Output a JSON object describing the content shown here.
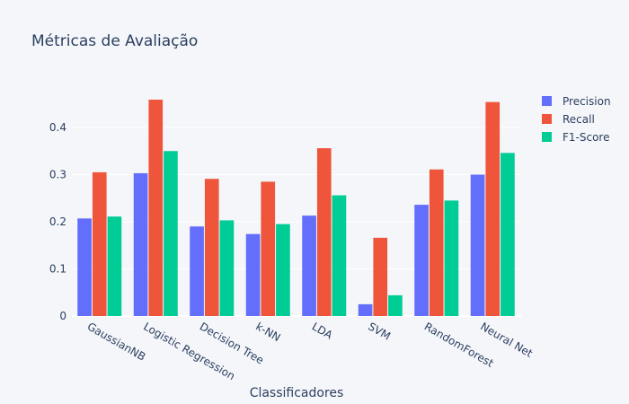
{
  "chart_data": {
    "type": "bar",
    "title": "Métricas de Avaliação",
    "xlabel": "Classificadores",
    "ylabel": "",
    "ylim": [
      0,
      0.48
    ],
    "yticks": [
      0,
      0.1,
      0.2,
      0.3,
      0.4
    ],
    "grid": true,
    "legend_position": "top-right",
    "categories": [
      "GaussianNB",
      "Logistic Regression",
      "Decision Tree",
      "k-NN",
      "LDA",
      "SVM",
      "RandomForest",
      "Neural Net"
    ],
    "series": [
      {
        "name": "Precision",
        "color": "#636efa",
        "values": [
          0.207,
          0.303,
          0.19,
          0.174,
          0.213,
          0.025,
          0.236,
          0.3
        ]
      },
      {
        "name": "Recall",
        "color": "#ef553b",
        "values": [
          0.305,
          0.459,
          0.291,
          0.285,
          0.356,
          0.166,
          0.311,
          0.454
        ]
      },
      {
        "name": "F1-Score",
        "color": "#00cc96",
        "values": [
          0.211,
          0.35,
          0.203,
          0.195,
          0.256,
          0.044,
          0.245,
          0.346
        ]
      }
    ]
  }
}
